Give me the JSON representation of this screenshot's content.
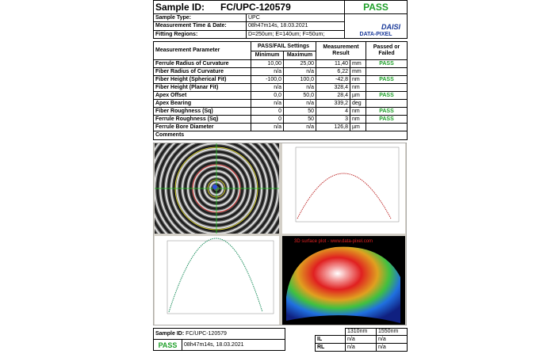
{
  "header": {
    "sample_id_label": "Sample ID:",
    "sample_id": "FC/UPC-120579",
    "status": "PASS",
    "fields": [
      {
        "label": "Sample Type:",
        "value": "UPC"
      },
      {
        "label": "Measurement Time & Date:",
        "value": "08h47m14s,  18.03.2021"
      },
      {
        "label": "Fitting Regions:",
        "value": "D=250um;   E=140um;   F=50um;"
      }
    ],
    "logo": {
      "brand": "DATA-PIXEL",
      "product": "DAISI"
    }
  },
  "table": {
    "headers": {
      "parameter": "Measurement Parameter",
      "settings": "PASS/FAIL Settings",
      "minimum": "Minimum",
      "maximum": "Maximum",
      "result": "Measurement Result",
      "status": "Passed or Failed"
    },
    "rows": [
      {
        "parameter": "Ferrule Radius of Curvature",
        "min": "10,00",
        "max": "25,00",
        "result": "11,40",
        "unit": "mm",
        "status": "PASS"
      },
      {
        "parameter": "Fiber Radius of Curvature",
        "min": "n/a",
        "max": "n/a",
        "result": "6,22",
        "unit": "mm"
      },
      {
        "parameter": "Fiber Height (Spherical Fit)",
        "min": "-100,0",
        "max": "100,0",
        "result": "-42,8",
        "unit": "nm",
        "status": "PASS"
      },
      {
        "parameter": "Fiber Height (Planar Fit)",
        "min": "n/a",
        "max": "n/a",
        "result": "328,4",
        "unit": "nm"
      },
      {
        "parameter": "Apex Offset",
        "min": "0,0",
        "max": "50,0",
        "result": "28,4",
        "unit": "µm",
        "status": "PASS"
      },
      {
        "parameter": "Apex Bearing",
        "min": "n/a",
        "max": "n/a",
        "result": "339,2",
        "unit": "deg"
      },
      {
        "parameter": "Fiber Roughness (Sq)",
        "min": "0",
        "max": "50",
        "result": "4",
        "unit": "nm",
        "status": "PASS"
      },
      {
        "parameter": "Ferrule Roughness (Sq)",
        "min": "0",
        "max": "50",
        "result": "3",
        "unit": "nm",
        "status": "PASS"
      },
      {
        "parameter": "Ferrule Bore Diameter",
        "min": "n/a",
        "max": "n/a",
        "result": "126,8",
        "unit": "µm"
      }
    ],
    "comments_label": "Comments"
  },
  "images": {
    "surface_caption": "3D surface plot - www.data-pixel.com"
  },
  "footer": {
    "sample_id_label": "Sample ID:",
    "sample_id": "FC/UPC-120579",
    "status": "PASS",
    "timestamp": "08h47m14s, 18.03.2021",
    "wavelengths": [
      "1310nm",
      "1550nm"
    ],
    "rows": [
      [
        "IL",
        "n/a",
        "n/a"
      ],
      [
        "RL",
        "n/a",
        "n/a"
      ]
    ]
  }
}
